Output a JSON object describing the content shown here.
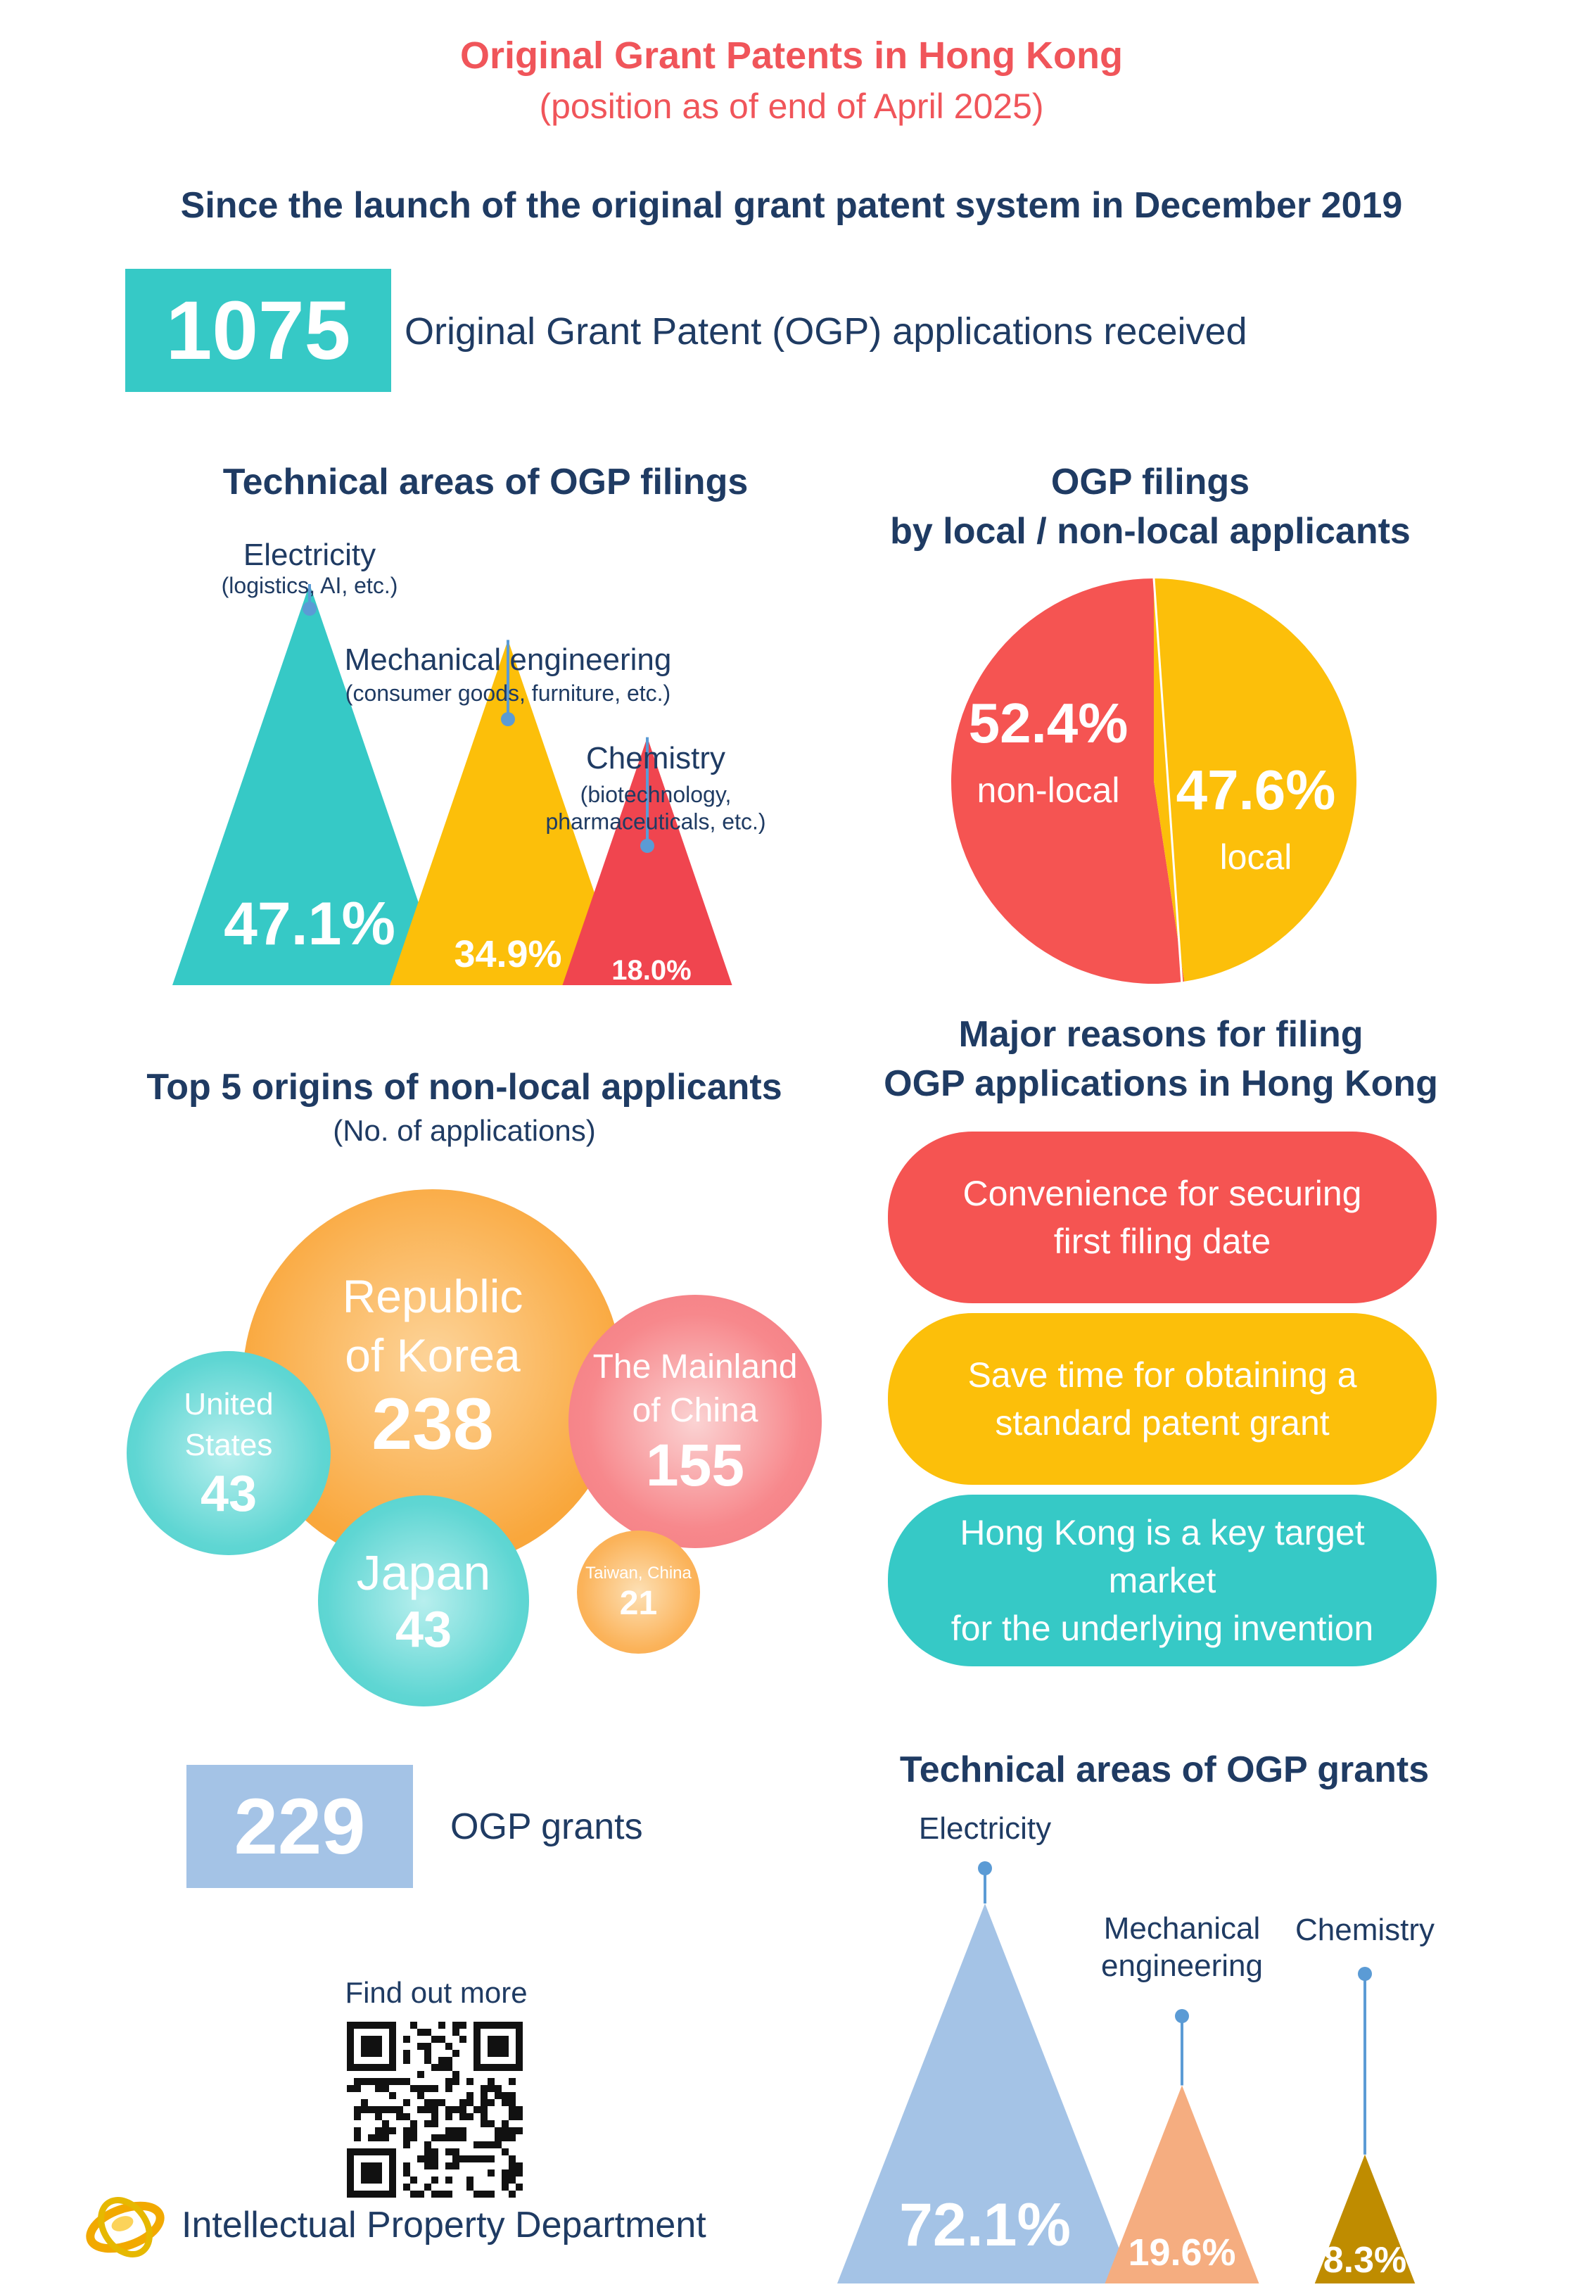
{
  "header": {
    "title": "Original Grant Patents in Hong Kong",
    "subtitle": "(position as of end of April 2025)",
    "since": "Since the launch of the original grant patent system in December 2019"
  },
  "applications": {
    "value": "1075",
    "label": "Original Grant Patent (OGP) applications received"
  },
  "grants": {
    "value": "229",
    "label": "OGP grants"
  },
  "filings_areas": {
    "title": "Technical areas of OGP filings",
    "items": [
      {
        "name": "Electricity",
        "sub": "(logistics, AI, etc.)",
        "value_label": "47.1%",
        "color": "#36c9c6"
      },
      {
        "name": "Mechanical engineering",
        "sub": "(consumer goods, furniture, etc.)",
        "value_label": "34.9%",
        "color": "#fcbf0a"
      },
      {
        "name": "Chemistry",
        "sub": "(biotechnology,\npharmaceuticals, etc.)",
        "value_label": "18.0%",
        "color": "#f0454f"
      }
    ]
  },
  "local_split": {
    "title_line1": "OGP filings",
    "title_line2": "by local / non-local applicants",
    "slices": [
      {
        "pct_label": "52.4%",
        "label": "non-local",
        "color": "#f55452"
      },
      {
        "pct_label": "47.6%",
        "label": "local",
        "color": "#fcbf0a"
      }
    ]
  },
  "origins": {
    "title": "Top 5 origins of non-local applicants",
    "subtitle": "(No. of applications)",
    "items": [
      {
        "name": "Republic\nof Korea",
        "value": "238"
      },
      {
        "name": "The Mainland\nof China",
        "value": "155"
      },
      {
        "name": "United\nStates",
        "value": "43"
      },
      {
        "name": "Japan",
        "value": "43"
      },
      {
        "name": "Taiwan, China",
        "value": "21"
      }
    ]
  },
  "reasons": {
    "title_line1": "Major reasons for filing",
    "title_line2": "OGP applications in Hong Kong",
    "items": [
      {
        "text": "Convenience for securing\nfirst filing date",
        "color": "#f55452"
      },
      {
        "text": "Save time for obtaining a\nstandard patent grant",
        "color": "#fcbf0a"
      },
      {
        "text": "Hong Kong is a key target market\nfor the underlying invention",
        "color": "#36c9c6"
      }
    ]
  },
  "grants_areas": {
    "title": "Technical areas of OGP grants",
    "items": [
      {
        "name": "Electricity",
        "value_label": "72.1%",
        "color": "#a4c3e6"
      },
      {
        "name": "Mechanical\nengineering",
        "value_label": "19.6%",
        "color": "#f5ad80"
      },
      {
        "name": "Chemistry",
        "value_label": "8.3%",
        "color": "#bf8c00"
      }
    ]
  },
  "footer": {
    "find_out_more": "Find out more",
    "department": "Intellectual Property Department"
  },
  "chart_data": [
    {
      "type": "bar",
      "title": "Technical areas of OGP filings",
      "categories": [
        "Electricity",
        "Mechanical engineering",
        "Chemistry"
      ],
      "values": [
        47.1,
        34.9,
        18.0
      ],
      "unit": "%"
    },
    {
      "type": "pie",
      "title": "OGP filings by local / non-local applicants",
      "categories": [
        "non-local",
        "local"
      ],
      "values": [
        52.4,
        47.6
      ],
      "unit": "%"
    },
    {
      "type": "scatter",
      "title": "Top 5 origins of non-local applicants",
      "categories": [
        "Republic of Korea",
        "The Mainland of China",
        "United States",
        "Japan",
        "Taiwan, China"
      ],
      "values": [
        238,
        155,
        43,
        43,
        21
      ]
    },
    {
      "type": "bar",
      "title": "Technical areas of OGP grants",
      "categories": [
        "Electricity",
        "Mechanical engineering",
        "Chemistry"
      ],
      "values": [
        72.1,
        19.6,
        8.3
      ],
      "unit": "%"
    }
  ]
}
